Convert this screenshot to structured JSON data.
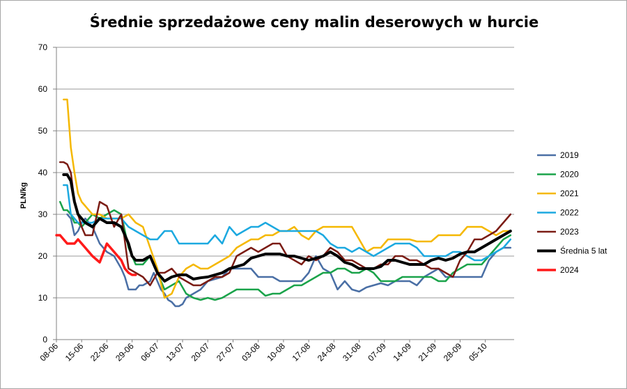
{
  "chart_data": {
    "type": "line",
    "title": "Średnie sprzedażowe ceny malin deserowych w hurcie",
    "xlabel": "",
    "ylabel": "PLN/kg",
    "ylim": [
      0,
      70
    ],
    "yticks": [
      0,
      10,
      20,
      30,
      40,
      50,
      60,
      70
    ],
    "grid": true,
    "legend": "right",
    "categories": [
      "08-06",
      "15-06",
      "22-06",
      "29-06",
      "06-07",
      "13-07",
      "20-07",
      "27-07",
      "03-08",
      "10-08",
      "17-08",
      "24-08",
      "31-08",
      "07-09",
      "14-09",
      "21-09",
      "28-09",
      "05-10"
    ],
    "x_unit": "days since 08-06",
    "series": [
      {
        "name": "2019",
        "color": "#4a6fa5",
        "width": 2.5,
        "x": [
          3,
          4,
          5,
          6,
          7,
          8,
          10,
          12,
          14,
          16,
          18,
          19,
          20,
          21,
          22,
          23,
          24,
          26,
          27,
          29,
          30,
          31,
          32,
          33,
          34,
          35,
          36,
          37,
          38,
          39,
          40,
          42,
          44,
          46,
          48,
          50,
          52,
          54,
          56,
          58,
          60,
          62,
          64,
          66,
          68,
          70,
          72,
          74,
          76,
          78,
          80,
          82,
          84,
          86,
          88,
          90,
          92,
          94,
          96,
          98,
          100,
          102,
          104,
          106,
          108,
          110,
          112,
          114,
          116,
          118,
          120,
          122,
          124,
          126
        ],
        "y": [
          30,
          29,
          25,
          26,
          28,
          29,
          27,
          23,
          21,
          20,
          17,
          15,
          12,
          12,
          12,
          13,
          13,
          14,
          16,
          12,
          11,
          9.5,
          9,
          8,
          8,
          8.5,
          10,
          10.5,
          11,
          11.5,
          12,
          14,
          14.5,
          15,
          17,
          17,
          17,
          17,
          15,
          15,
          15,
          14,
          14,
          14,
          14,
          16,
          20,
          17,
          16,
          12,
          14,
          12,
          11.5,
          12.5,
          13,
          13.5,
          13,
          14,
          14,
          14,
          13,
          15,
          16,
          17,
          15,
          15,
          15,
          15,
          15,
          15,
          19,
          21,
          22,
          22
        ]
      },
      {
        "name": "2020",
        "color": "#1aa34a",
        "width": 2.5,
        "x": [
          1,
          2,
          3,
          4,
          5,
          6,
          7,
          8,
          10,
          12,
          14,
          16,
          18,
          20,
          22,
          24,
          26,
          28,
          30,
          32,
          34,
          36,
          38,
          40,
          42,
          44,
          46,
          48,
          50,
          52,
          54,
          56,
          58,
          60,
          62,
          64,
          66,
          68,
          70,
          72,
          74,
          76,
          78,
          80,
          82,
          84,
          86,
          88,
          90,
          92,
          94,
          96,
          98,
          100,
          102,
          104,
          106,
          108,
          110,
          112,
          114,
          116,
          118,
          120,
          122,
          124,
          126
        ],
        "y": [
          33,
          31,
          31,
          30,
          28,
          28,
          27,
          28,
          30,
          29,
          30,
          31,
          30,
          22,
          18,
          18,
          20,
          16,
          12,
          13,
          14,
          11,
          10,
          9.5,
          10,
          9.5,
          10,
          11,
          12,
          12,
          12,
          12,
          10.5,
          11,
          11,
          12,
          13,
          13,
          14,
          15,
          16,
          16,
          17,
          17,
          16,
          16,
          17,
          16,
          14,
          14,
          14,
          15,
          15,
          15,
          15,
          15,
          14,
          14,
          16,
          17,
          18,
          18,
          18,
          20,
          22,
          24,
          25
        ]
      },
      {
        "name": "2021",
        "color": "#f5b800",
        "width": 2.5,
        "x": [
          2,
          3,
          4,
          5,
          6,
          7,
          8,
          10,
          12,
          14,
          16,
          18,
          20,
          22,
          24,
          26,
          28,
          30,
          32,
          34,
          36,
          38,
          40,
          42,
          44,
          46,
          48,
          50,
          52,
          54,
          56,
          58,
          60,
          62,
          64,
          66,
          68,
          70,
          72,
          74,
          76,
          78,
          80,
          82,
          84,
          86,
          88,
          90,
          92,
          94,
          96,
          98,
          100,
          102,
          104,
          106,
          108,
          110,
          112,
          114,
          116,
          118,
          120,
          122,
          124,
          126
        ],
        "y": [
          57.5,
          57.5,
          46,
          40,
          35,
          33,
          32,
          30,
          30,
          29,
          29,
          29,
          30,
          28,
          27,
          22,
          17,
          10,
          11,
          15,
          17,
          18,
          17,
          17,
          18,
          19,
          20,
          22,
          23,
          24,
          24,
          25,
          25,
          26,
          26,
          27,
          25,
          24,
          26,
          27,
          27,
          27,
          27,
          27,
          24,
          21,
          22,
          22,
          24,
          24,
          24,
          24,
          23.5,
          23.5,
          23.5,
          25,
          25,
          25,
          25,
          27,
          27,
          27,
          26,
          25,
          26,
          26
        ]
      },
      {
        "name": "2022",
        "color": "#1ca9e0",
        "width": 2.5,
        "x": [
          2,
          3,
          4,
          5,
          6,
          7,
          8,
          10,
          12,
          14,
          16,
          18,
          20,
          22,
          24,
          26,
          28,
          30,
          32,
          34,
          36,
          38,
          40,
          42,
          44,
          46,
          48,
          50,
          52,
          54,
          56,
          58,
          60,
          62,
          64,
          66,
          68,
          70,
          72,
          74,
          76,
          78,
          80,
          82,
          84,
          86,
          88,
          90,
          92,
          94,
          96,
          98,
          100,
          102,
          104,
          106,
          108,
          110,
          112,
          114,
          116,
          118,
          120,
          122,
          124,
          126
        ],
        "y": [
          37,
          37,
          30,
          29,
          28,
          28,
          28,
          28,
          29,
          29,
          29,
          29,
          27,
          26,
          25,
          24,
          24,
          26,
          26,
          23,
          23,
          23,
          23,
          23,
          25,
          23,
          27,
          25,
          26,
          27,
          27,
          28,
          27,
          26,
          26,
          26,
          26,
          26,
          26,
          25,
          23,
          22,
          22,
          21,
          22,
          21,
          20,
          21,
          22,
          23,
          23,
          23,
          22,
          20,
          20,
          20,
          20,
          21,
          21,
          20,
          19,
          19,
          20,
          21,
          22,
          24
        ]
      },
      {
        "name": "2023",
        "color": "#7b1c14",
        "width": 2.5,
        "x": [
          1,
          2,
          3,
          4,
          5,
          6,
          7,
          8,
          10,
          12,
          14,
          16,
          18,
          20,
          22,
          24,
          26,
          28,
          30,
          32,
          34,
          36,
          38,
          40,
          42,
          44,
          46,
          48,
          50,
          52,
          54,
          56,
          58,
          60,
          62,
          64,
          66,
          68,
          70,
          72,
          74,
          76,
          78,
          80,
          82,
          84,
          86,
          88,
          90,
          92,
          94,
          96,
          98,
          100,
          102,
          104,
          106,
          108,
          110,
          112,
          114,
          116,
          118,
          120,
          122,
          124,
          126
        ],
        "y": [
          42.5,
          42.5,
          42,
          40,
          33,
          30,
          27,
          25,
          25,
          33,
          32,
          27,
          30,
          17,
          16,
          15,
          13,
          16,
          16,
          17,
          15,
          14,
          13,
          13,
          14,
          15,
          15,
          16,
          20,
          21,
          22,
          21,
          22,
          23,
          23,
          20,
          19,
          18,
          20,
          19,
          20,
          22,
          21,
          19,
          19,
          18,
          17,
          17,
          18,
          18,
          20,
          20,
          19,
          19,
          18,
          17,
          17,
          16,
          15,
          19,
          21,
          24,
          24,
          25,
          26,
          28,
          30
        ]
      },
      {
        "name": "Średnia 5 lat",
        "color": "#000000",
        "width": 4,
        "x": [
          2,
          3,
          4,
          5,
          6,
          7,
          8,
          10,
          12,
          14,
          16,
          18,
          19,
          20,
          21,
          22,
          24,
          26,
          28,
          30,
          32,
          34,
          36,
          38,
          40,
          42,
          44,
          46,
          48,
          50,
          52,
          54,
          56,
          58,
          60,
          62,
          64,
          66,
          68,
          70,
          72,
          74,
          76,
          78,
          80,
          82,
          84,
          86,
          88,
          90,
          92,
          94,
          96,
          98,
          100,
          102,
          104,
          106,
          108,
          110,
          112,
          114,
          116,
          118,
          120,
          122,
          124,
          126
        ],
        "y": [
          39.5,
          39.5,
          38,
          33,
          30,
          29,
          28,
          27,
          29,
          28,
          28,
          27,
          25,
          23,
          20,
          19,
          19,
          20,
          16,
          14,
          15,
          15.5,
          15.5,
          14.5,
          14.8,
          15,
          15.5,
          16,
          17,
          17.5,
          18,
          19.5,
          20,
          20.5,
          20.5,
          20.5,
          20,
          20,
          19.5,
          19,
          19.5,
          20,
          21,
          20,
          18.5,
          18,
          17,
          17,
          17,
          17.5,
          19,
          19,
          18.5,
          18,
          18,
          18,
          19,
          19.5,
          19,
          19.5,
          20.5,
          21,
          21,
          22,
          23,
          24,
          25,
          26
        ]
      },
      {
        "name": "2024",
        "color": "#ff1a1a",
        "width": 3.5,
        "x": [
          0,
          1,
          2,
          3,
          4,
          5,
          6,
          8,
          10,
          12,
          14,
          16,
          18,
          19,
          20,
          21,
          22
        ],
        "y": [
          25,
          25,
          24,
          23,
          23,
          23,
          24,
          22,
          20,
          18.5,
          23,
          21,
          19,
          17,
          16,
          15.5,
          15.5
        ]
      }
    ]
  }
}
